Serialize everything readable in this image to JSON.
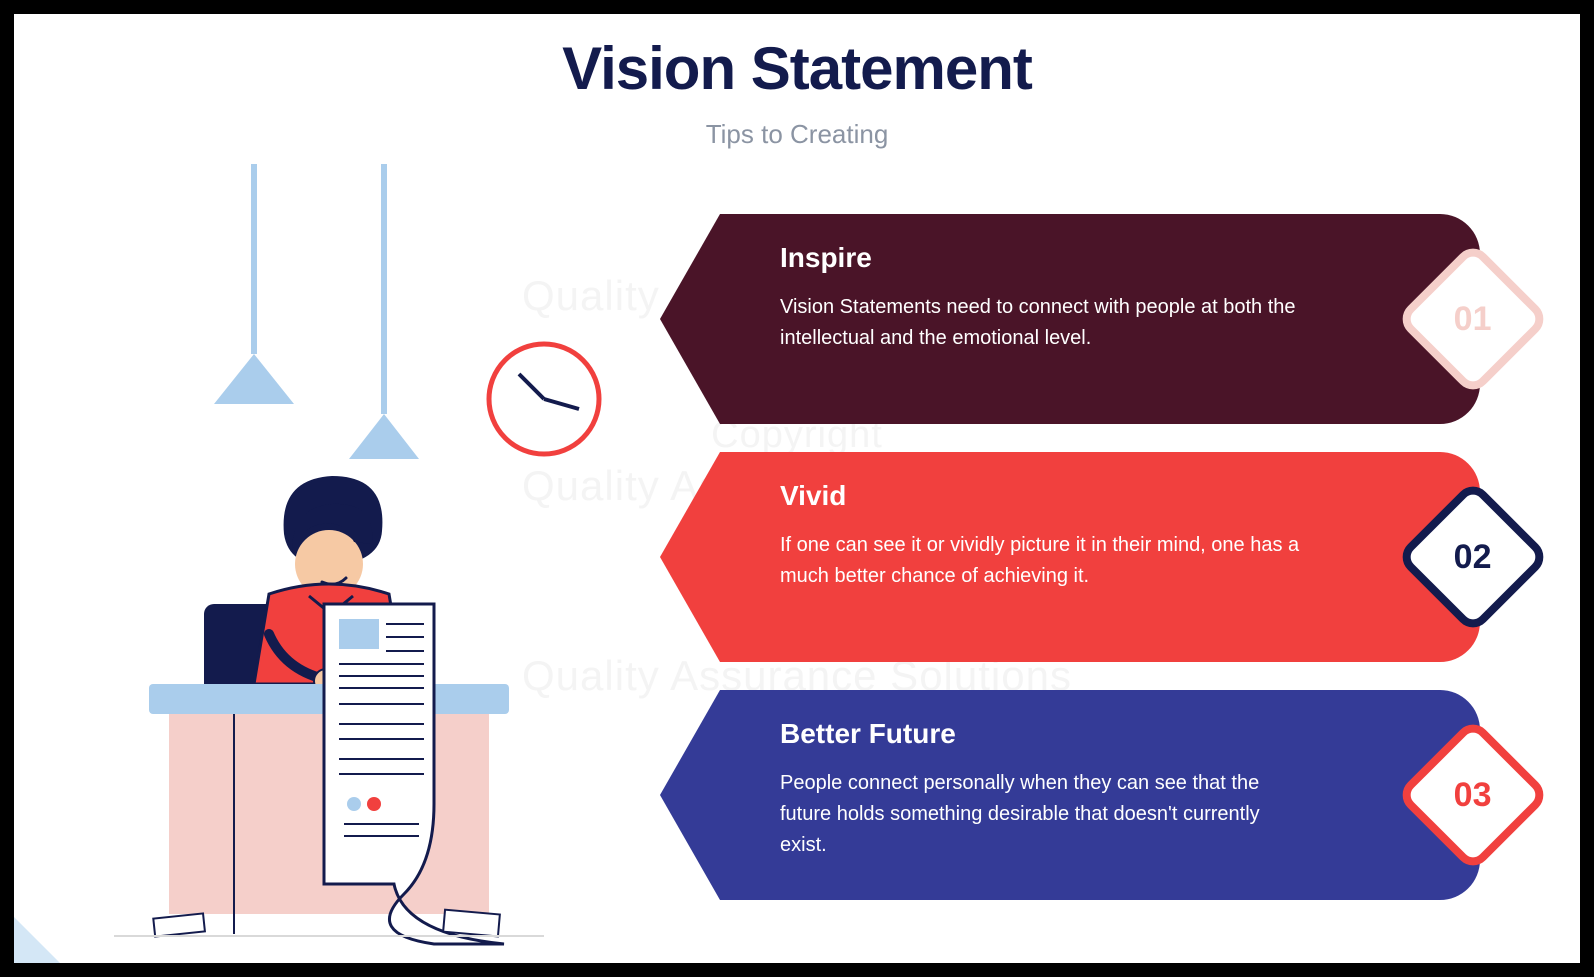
{
  "title": {
    "text": "Vision Statement",
    "color": "#131b4d",
    "fontsize": 60
  },
  "subtitle": {
    "text": "Tips to Creating",
    "color": "#8b94a3",
    "fontsize": 26
  },
  "watermark": {
    "line1": "Copyright",
    "line2": "Quality Assurance Solutions",
    "color": "#f4f4f4",
    "fontsize1": 38,
    "fontsize2": 42,
    "positions": [
      210,
      400,
      590
    ]
  },
  "illustration": {
    "lamp_color": "#aacdec",
    "clock_ring": "#f1403e",
    "clock_hands": "#131b4d",
    "person_shirt": "#f1403e",
    "person_hair": "#131b4d",
    "person_skin": "#f6c9a4",
    "desk_top": "#aacdec",
    "desk_body": "#f5cfca",
    "chair": "#131b4d",
    "paper": "#ffffff",
    "paper_outline": "#131b4d",
    "paper_accent_blue": "#aacdec",
    "paper_accent_red": "#f1403e"
  },
  "cards": [
    {
      "title": "Inspire",
      "body": "Vision Statements need to connect with people at both the intellectual and the emotional level.",
      "bg": "#4a1428",
      "number": "01",
      "badge_border": "#f5cfca",
      "badge_text": "#f5cfca"
    },
    {
      "title": "Vivid",
      "body": "If one can see it or vividly picture it in their mind, one has a much better chance of achieving it.",
      "bg": "#f1403e",
      "number": "02",
      "badge_border": "#131b4d",
      "badge_text": "#131b4d"
    },
    {
      "title": "Better Future",
      "body": "People connect personally when they can see that the future holds something desirable that doesn't currently exist.",
      "bg": "#343b97",
      "number": "03",
      "badge_border": "#f1403e",
      "badge_text": "#f1403e"
    }
  ],
  "card_style": {
    "title_fontsize": 28,
    "body_fontsize": 20,
    "badge_fontsize": 34,
    "badge_border_width": 8
  }
}
